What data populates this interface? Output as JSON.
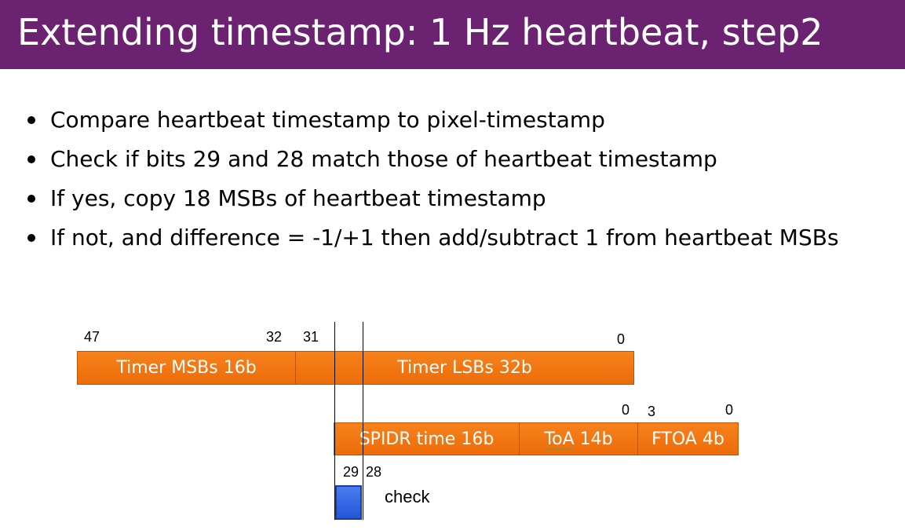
{
  "slide": {
    "title": "Extending timestamp: 1 Hz heartbeat, step2",
    "bullets": [
      "Compare heartbeat timestamp to pixel-timestamp",
      "Check if bits 29 and 28 match those of heartbeat timestamp",
      "If yes, copy 18 MSBs of heartbeat timestamp",
      "If not, and difference = -1/+1 then add/subtract 1 from heartbeat MSBs"
    ]
  },
  "diagram": {
    "timer": {
      "msb_label": "Timer MSBs 16b",
      "lsb_label": "Timer LSBs 32b",
      "bit_47": "47",
      "bit_32": "32",
      "bit_31": "31",
      "bit_0": "0"
    },
    "pixel": {
      "spidr_label": "SPIDR time 16b",
      "toa_label_a": "ToA",
      "toa_label_b": "14b",
      "ftoa_label": "FTOA 4b",
      "toa_bit_0": "0",
      "ftoa_bit_3": "3",
      "ftoa_bit_0": "0"
    },
    "check": {
      "bit_29": "29",
      "bit_28": "28",
      "label": "check"
    },
    "colors": {
      "segment": "#f27a14",
      "check_box": "#3366e6",
      "title_bar": "#6b2371"
    }
  }
}
